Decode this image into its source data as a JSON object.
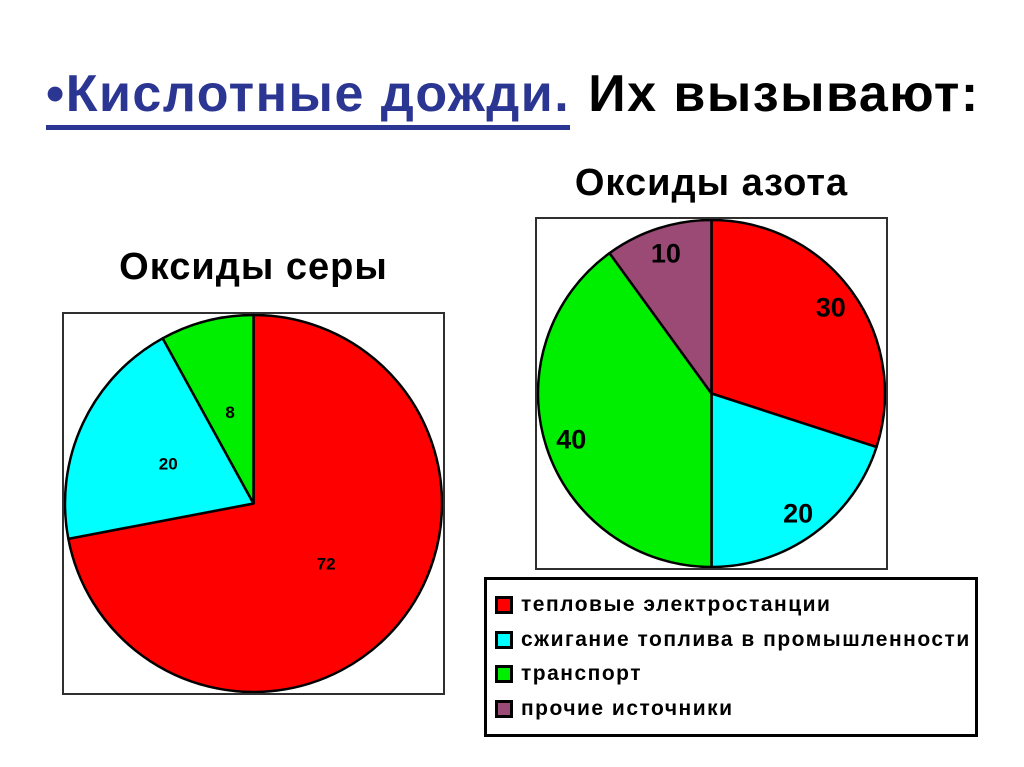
{
  "heading": {
    "bullet": "•",
    "highlighted": "Кислотные дожди.",
    "rest": "Их вызывают:",
    "highlight_color": "#2B3592"
  },
  "chart_data": [
    {
      "type": "pie",
      "title": "Оксиды серы",
      "values": [
        72,
        20,
        8
      ],
      "labels": [
        "72",
        "20",
        "8"
      ],
      "colors": [
        "#FF0000",
        "#00FFFF",
        "#00EE00"
      ],
      "start_angle": 0,
      "direction": "clockwise",
      "label_radius": 0.5,
      "slice_border_color": "#000000"
    },
    {
      "type": "pie",
      "title": "Оксиды азота",
      "values": [
        30,
        20,
        40,
        10
      ],
      "labels": [
        "30",
        "20",
        "40",
        "10"
      ],
      "colors": [
        "#FF0000",
        "#00FFFF",
        "#00EE00",
        "#9A4A74"
      ],
      "start_angle": 0,
      "direction": "clockwise",
      "label_radius": 0.85,
      "slice_border_color": "#000000"
    }
  ],
  "legend": {
    "items": [
      {
        "label": "тепловые электростанции",
        "color": "#FF0000"
      },
      {
        "label": "сжигание топлива в промышленности",
        "color": "#00FFFF"
      },
      {
        "label": "транспорт",
        "color": "#00EE00"
      },
      {
        "label": "прочие источники",
        "color": "#9A4A74"
      }
    ]
  }
}
